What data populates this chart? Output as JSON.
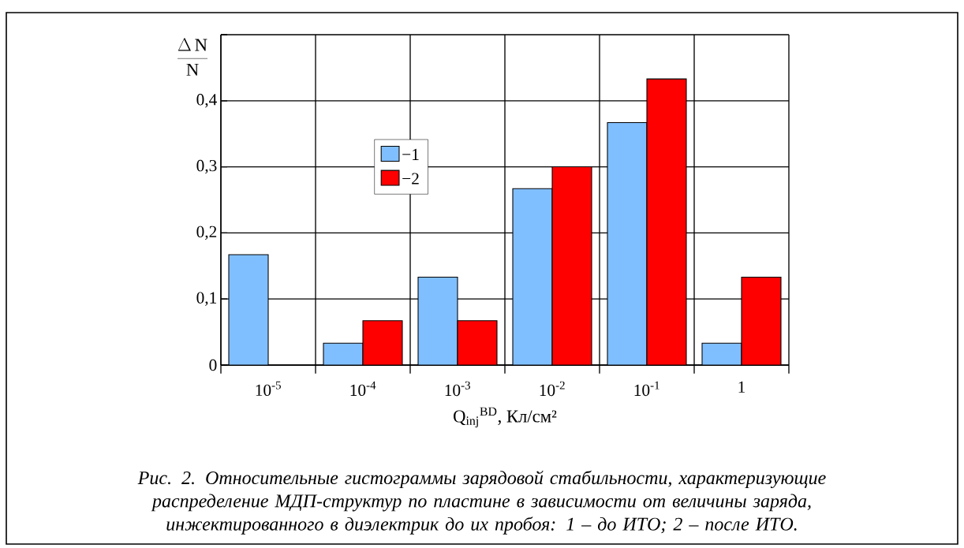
{
  "chart_data": {
    "type": "bar",
    "categories": [
      "10$^{-5}$",
      "10$^{-4}$",
      "10$^{-3}$",
      "10$^{-2}$",
      "10$^{-1}$",
      "1"
    ],
    "series": [
      {
        "name": "−1",
        "color": "#80bfff",
        "values": [
          0.167,
          0.033,
          0.133,
          0.267,
          0.367,
          0.033
        ]
      },
      {
        "name": "−2",
        "color": "#ff0000",
        "values": [
          0,
          0.067,
          0.067,
          0.3,
          0.433,
          0.133
        ]
      }
    ],
    "ylim": [
      0,
      0.5
    ],
    "yticks": [
      0,
      {
        "value": 0.1,
        "label": "0,1"
      },
      {
        "value": 0.2,
        "label": "0,2"
      },
      {
        "value": 0.3,
        "label": "0,3"
      },
      {
        "value": 0.4,
        "label": "0,4"
      },
      {
        "value": 0.5,
        "label": null
      }
    ],
    "ylabel": "\\frac{\\Delta\\,\\mathrm{N}}{\\mathrm{N}}",
    "xlabel": "Q$_{inj}$$^{BD}$, Кл/см²",
    "grid": true,
    "legend": "left",
    "annotations": [
      "Рис. 2. Относительные гистограммы зарядовой стабильности, характеризующие распределение МДП-структур по пластине в зависимости от величины заряда, инжектированного в диэлектрик до их пробоя: 1 – до ИТО; 2 – после ИТО."
    ]
  }
}
